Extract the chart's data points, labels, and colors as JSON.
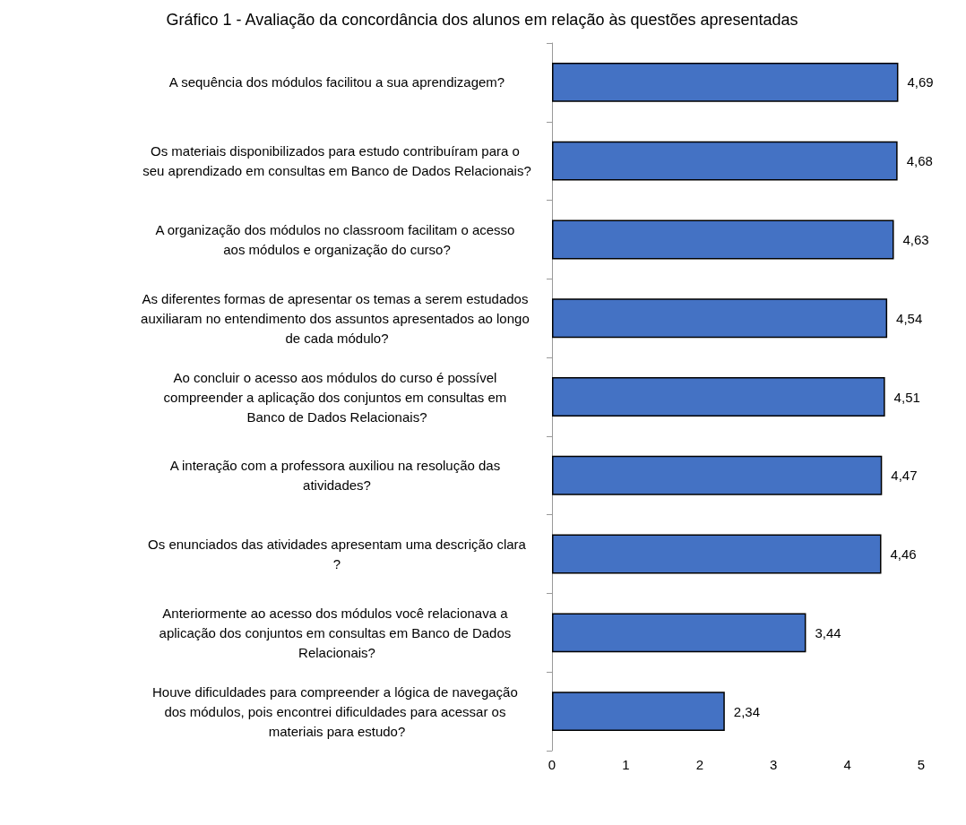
{
  "chart_data": {
    "type": "bar",
    "orientation": "horizontal",
    "title": "Gráfico 1 - Avaliação da concordância dos alunos em relação às questões apresentadas",
    "categories": [
      "A sequência dos módulos facilitou a sua aprendizagem?",
      "Os materiais disponibilizados para estudo contribuíram para o seu aprendizado em consultas em Banco de Dados Relacionais?",
      "A organização dos módulos no classroom facilitam o acesso aos módulos e organização do curso?",
      "As diferentes formas de apresentar os temas a serem estudados auxiliaram no entendimento dos assuntos apresentados ao longo de cada módulo?",
      "Ao concluir o acesso aos módulos do curso é possível compreender a aplicação dos conjuntos em consultas em Banco de Dados Relacionais?",
      "A interação com a professora auxiliou na resolução das atividades?",
      "Os enunciados das atividades apresentam uma descrição clara?",
      "Anteriormente ao acesso dos módulos você relacionava a aplicação dos conjuntos em consultas em Banco de Dados Relacionais?",
      "Houve dificuldades para compreender a lógica de navegação dos módulos, pois encontrei dificuldades para acessar os materiais para estudo?"
    ],
    "values": [
      4.69,
      4.68,
      4.63,
      4.54,
      4.51,
      4.47,
      4.46,
      3.44,
      2.34
    ],
    "value_labels": [
      "4,69",
      "4,68",
      "4,63",
      "4,54",
      "4,51",
      "4,47",
      "4,46",
      "3,44",
      "2,34"
    ],
    "color": "#4472c4",
    "xlim": [
      0,
      5
    ],
    "xticks": [
      0,
      1,
      2,
      3,
      4,
      5
    ],
    "grid": false
  }
}
